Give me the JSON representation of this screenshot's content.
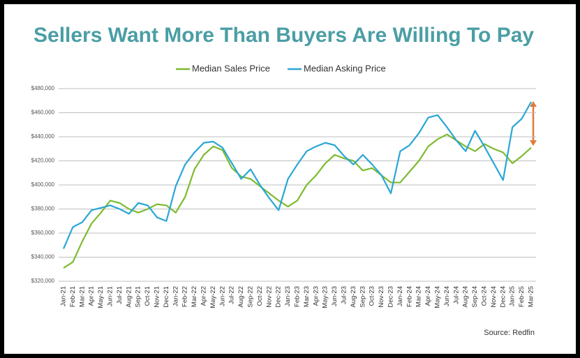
{
  "chart_data": {
    "type": "line",
    "title": "Sellers Want More Than Buyers Are Willing To Pay",
    "source": "Source: Redfin",
    "categories": [
      "Jan-21",
      "Feb-21",
      "Mar-21",
      "Apr-21",
      "May-21",
      "Jun-21",
      "Jul-21",
      "Aug-21",
      "Sep-21",
      "Oct-21",
      "Nov-21",
      "Dec-21",
      "Jan-22",
      "Feb-22",
      "Mar-22",
      "Apr-22",
      "May-22",
      "Jun-22",
      "Jul-22",
      "Aug-22",
      "Sep-22",
      "Oct-22",
      "Nov-22",
      "Dec-22",
      "Jan-23",
      "Feb-23",
      "Mar-23",
      "Apr-23",
      "May-23",
      "Jun-23",
      "Jul-23",
      "Aug-23",
      "Sep-23",
      "Oct-23",
      "Nov-23",
      "Dec-23",
      "Jan-24",
      "Feb-24",
      "Mar-24",
      "Apr-24",
      "May-24",
      "Jun-24",
      "Jul-24",
      "Aug-24",
      "Sep-24",
      "Oct-24",
      "Nov-24",
      "Dec-24",
      "Jan-25",
      "Feb-25",
      "Mar-25"
    ],
    "series": [
      {
        "name": "Median Sales Price",
        "color": "#7dbb2f",
        "values": [
          331000,
          336000,
          353000,
          368000,
          377000,
          387000,
          385000,
          380000,
          377000,
          380000,
          384000,
          383000,
          377000,
          390000,
          413000,
          425000,
          432000,
          429000,
          414000,
          407000,
          405000,
          399000,
          393000,
          387000,
          382000,
          387000,
          400000,
          408000,
          418000,
          425000,
          422000,
          420000,
          412000,
          414000,
          408000,
          402000,
          402000,
          411000,
          420000,
          432000,
          438000,
          442000,
          437000,
          432000,
          428000,
          434000,
          430000,
          427000,
          418000,
          424000,
          431000
        ]
      },
      {
        "name": "Median Asking Price",
        "color": "#2aa6d6",
        "values": [
          347000,
          365000,
          369000,
          379000,
          381000,
          383000,
          380000,
          376000,
          385000,
          383000,
          373000,
          370000,
          399000,
          417000,
          427000,
          435000,
          436000,
          431000,
          418000,
          405000,
          413000,
          400000,
          389000,
          379000,
          405000,
          417000,
          428000,
          432000,
          435000,
          433000,
          424000,
          417000,
          425000,
          417000,
          408000,
          393000,
          428000,
          433000,
          443000,
          456000,
          458000,
          448000,
          437000,
          428000,
          445000,
          432000,
          418000,
          404000,
          448000,
          455000,
          469000
        ]
      }
    ],
    "ylim": [
      320000,
      480000
    ],
    "yticks": [
      {
        "value": 320000,
        "label": "$320,000"
      },
      {
        "value": 340000,
        "label": "$340,000"
      },
      {
        "value": 360000,
        "label": "$360,000"
      },
      {
        "value": 380000,
        "label": "$380,000"
      },
      {
        "value": 400000,
        "label": "$400,000"
      },
      {
        "value": 420000,
        "label": "$420,000"
      },
      {
        "value": 440000,
        "label": "$440,000"
      },
      {
        "value": 460000,
        "label": "$460,000"
      },
      {
        "value": 480000,
        "label": "$480,000"
      }
    ],
    "grid": true
  }
}
